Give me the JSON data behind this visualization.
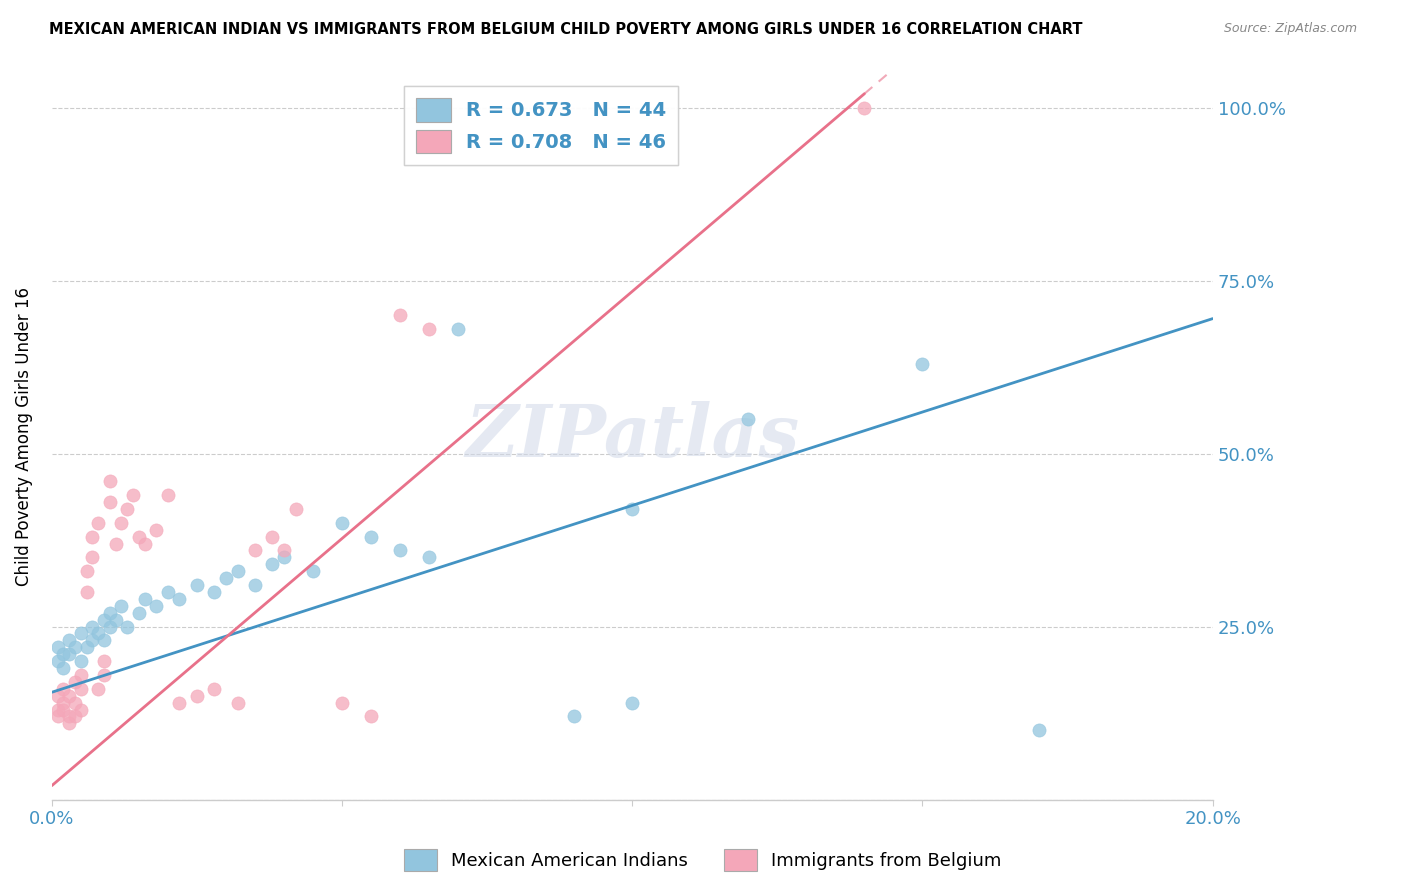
{
  "title": "MEXICAN AMERICAN INDIAN VS IMMIGRANTS FROM BELGIUM CHILD POVERTY AMONG GIRLS UNDER 16 CORRELATION CHART",
  "source": "Source: ZipAtlas.com",
  "ylabel": "Child Poverty Among Girls Under 16",
  "xlim": [
    0.0,
    0.2
  ],
  "ylim": [
    0.0,
    1.05
  ],
  "yticks": [
    0.0,
    0.25,
    0.5,
    0.75,
    1.0
  ],
  "ytick_labels": [
    "",
    "25.0%",
    "50.0%",
    "75.0%",
    "100.0%"
  ],
  "xticks": [
    0.0,
    0.05,
    0.1,
    0.15,
    0.2
  ],
  "xtick_labels": [
    "0.0%",
    "",
    "",
    "",
    "20.0%"
  ],
  "blue_color": "#92c5de",
  "pink_color": "#f4a7b9",
  "blue_line_color": "#4393c3",
  "pink_line_color": "#e8718a",
  "watermark": "ZIPatlas",
  "legend_blue_label": "R = 0.673   N = 44",
  "legend_pink_label": "R = 0.708   N = 46",
  "legend_bottom_blue": "Mexican American Indians",
  "legend_bottom_pink": "Immigrants from Belgium",
  "blue_line_x": [
    0.0,
    0.2
  ],
  "blue_line_y": [
    0.155,
    0.695
  ],
  "pink_line_x": [
    0.0,
    0.14
  ],
  "pink_line_y": [
    0.02,
    1.02
  ],
  "blue_points_x": [
    0.001,
    0.001,
    0.002,
    0.002,
    0.003,
    0.003,
    0.004,
    0.005,
    0.005,
    0.006,
    0.007,
    0.007,
    0.008,
    0.009,
    0.009,
    0.01,
    0.01,
    0.011,
    0.012,
    0.013,
    0.015,
    0.016,
    0.018,
    0.02,
    0.022,
    0.025,
    0.028,
    0.03,
    0.032,
    0.035,
    0.038,
    0.04,
    0.045,
    0.05,
    0.055,
    0.06,
    0.065,
    0.07,
    0.09,
    0.1,
    0.1,
    0.12,
    0.15,
    0.17
  ],
  "blue_points_y": [
    0.2,
    0.22,
    0.21,
    0.19,
    0.23,
    0.21,
    0.22,
    0.2,
    0.24,
    0.22,
    0.23,
    0.25,
    0.24,
    0.23,
    0.26,
    0.25,
    0.27,
    0.26,
    0.28,
    0.25,
    0.27,
    0.29,
    0.28,
    0.3,
    0.29,
    0.31,
    0.3,
    0.32,
    0.33,
    0.31,
    0.34,
    0.35,
    0.33,
    0.4,
    0.38,
    0.36,
    0.35,
    0.68,
    0.12,
    0.14,
    0.42,
    0.55,
    0.63,
    0.1
  ],
  "pink_points_x": [
    0.001,
    0.001,
    0.001,
    0.002,
    0.002,
    0.002,
    0.003,
    0.003,
    0.003,
    0.004,
    0.004,
    0.004,
    0.005,
    0.005,
    0.005,
    0.006,
    0.006,
    0.007,
    0.007,
    0.008,
    0.008,
    0.009,
    0.009,
    0.01,
    0.01,
    0.011,
    0.012,
    0.013,
    0.014,
    0.015,
    0.016,
    0.018,
    0.02,
    0.022,
    0.025,
    0.028,
    0.032,
    0.035,
    0.038,
    0.04,
    0.042,
    0.05,
    0.055,
    0.06,
    0.065,
    0.14
  ],
  "pink_points_y": [
    0.13,
    0.15,
    0.12,
    0.14,
    0.13,
    0.16,
    0.12,
    0.15,
    0.11,
    0.17,
    0.14,
    0.12,
    0.16,
    0.13,
    0.18,
    0.3,
    0.33,
    0.35,
    0.38,
    0.16,
    0.4,
    0.18,
    0.2,
    0.43,
    0.46,
    0.37,
    0.4,
    0.42,
    0.44,
    0.38,
    0.37,
    0.39,
    0.44,
    0.14,
    0.15,
    0.16,
    0.14,
    0.36,
    0.38,
    0.36,
    0.42,
    0.14,
    0.12,
    0.7,
    0.68,
    1.0
  ]
}
